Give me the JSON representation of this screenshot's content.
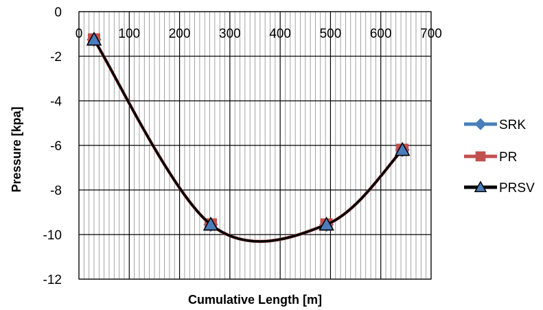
{
  "chart_data": {
    "type": "line",
    "xlabel": "Cumulative Length [m]",
    "ylabel": "Pressure [kpa]",
    "xlim": [
      0,
      700
    ],
    "ylim": [
      -12,
      0
    ],
    "xticks": [
      0,
      100,
      200,
      300,
      400,
      500,
      600,
      700
    ],
    "yticks": [
      0,
      -2,
      -4,
      -6,
      -8,
      -10,
      -12
    ],
    "x_tick_labels": [
      "0",
      "100",
      "200",
      "300",
      "400",
      "500",
      "600",
      "700"
    ],
    "y_tick_labels": [
      "0",
      "-2",
      "-4",
      "-6",
      "-8",
      "-10",
      "-12"
    ],
    "x_axis_position": "top (at y = 0)",
    "x_minor_grid_step": 10,
    "grid": true,
    "smooth": true,
    "legend_position": "right",
    "series": [
      {
        "name": "SRK",
        "color": "#4a7ebb",
        "marker": "diamond",
        "x": [
          30,
          262,
          492,
          643
        ],
        "y": [
          -1.25,
          -9.55,
          -9.55,
          -6.2
        ]
      },
      {
        "name": "PR",
        "color": "#c0504d",
        "marker": "square",
        "x": [
          30,
          262,
          492,
          643
        ],
        "y": [
          -1.25,
          -9.55,
          -9.55,
          -6.2
        ]
      },
      {
        "name": "PRSV",
        "color": "#000000",
        "marker": "triangle",
        "marker_fill": "#4a7ebb",
        "x": [
          30,
          262,
          492,
          643
        ],
        "y": [
          -1.25,
          -9.55,
          -9.55,
          -6.2
        ]
      }
    ]
  }
}
